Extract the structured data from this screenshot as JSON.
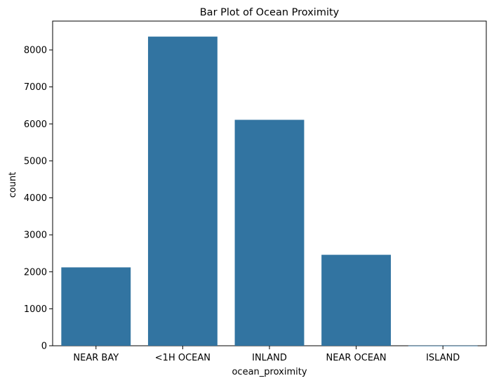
{
  "chart_data": {
    "type": "bar",
    "title": "Bar Plot of Ocean Proximity",
    "xlabel": "ocean_proximity",
    "ylabel": "count",
    "categories": [
      "NEAR BAY",
      "<1H OCEAN",
      "INLAND",
      "NEAR OCEAN",
      "ISLAND"
    ],
    "values": [
      2120,
      8360,
      6110,
      2460,
      4
    ],
    "ylim": [
      0,
      8780
    ],
    "yticks": [
      0,
      1000,
      2000,
      3000,
      4000,
      5000,
      6000,
      7000,
      8000
    ],
    "ytick_labels": [
      "0",
      "1000",
      "2000",
      "3000",
      "4000",
      "5000",
      "6000",
      "7000",
      "8000"
    ],
    "bar_color": "#3274a1",
    "grid": false,
    "legend": false
  }
}
